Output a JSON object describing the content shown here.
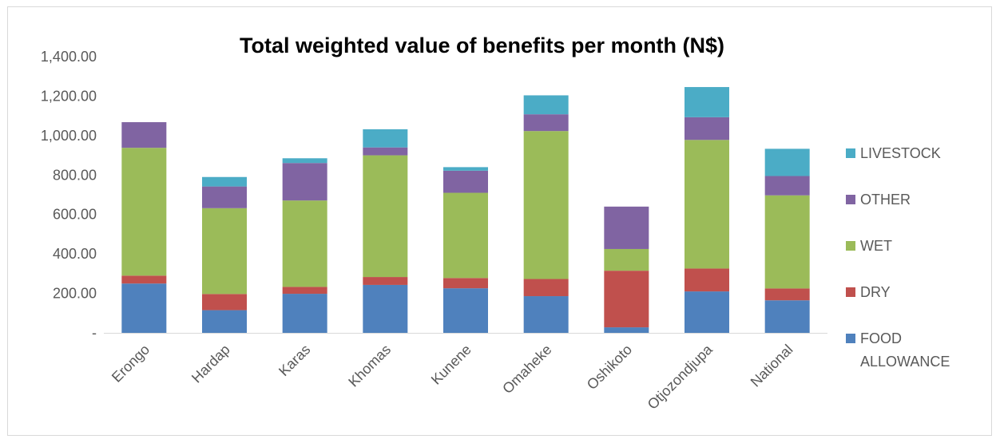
{
  "chart_data": {
    "type": "bar",
    "stacked": true,
    "title": "Total weighted value of benefits per month (N$)",
    "xlabel": "",
    "ylabel": "",
    "categories": [
      "Erongo",
      "Hardap",
      "Karas",
      "Khomas",
      "Kunene",
      "Omaheke",
      "Oshikoto",
      "Otjozondjupa",
      "National"
    ],
    "ylim": [
      0,
      1400
    ],
    "yticks": [
      0,
      200,
      400,
      600,
      800,
      1000,
      1200,
      1400
    ],
    "ytick_labels": [
      "-",
      "200.00",
      "400.00",
      "600.00",
      "800.00",
      "1,000.00",
      "1,200.00",
      "1,400.00"
    ],
    "grid": false,
    "legend_position": "right",
    "series": [
      {
        "name": "FOOD ALLOWANCE",
        "color": "#4f81bd",
        "values": [
          250,
          115,
          198,
          243,
          226,
          186,
          28,
          210,
          165
        ]
      },
      {
        "name": "DRY",
        "color": "#c0504d",
        "values": [
          40,
          82,
          35,
          40,
          52,
          87,
          287,
          116,
          60
        ]
      },
      {
        "name": "WET",
        "color": "#9bbb59",
        "values": [
          648,
          435,
          438,
          617,
          432,
          750,
          110,
          652,
          472
        ]
      },
      {
        "name": "OTHER",
        "color": "#8064a2",
        "values": [
          130,
          110,
          190,
          40,
          112,
          85,
          215,
          115,
          98
        ]
      },
      {
        "name": "LIVESTOCK",
        "color": "#4bacc6",
        "values": [
          0,
          48,
          24,
          92,
          18,
          96,
          0,
          153,
          138
        ]
      }
    ],
    "legend_order": [
      "LIVESTOCK",
      "OTHER",
      "WET",
      "DRY",
      "FOOD ALLOWANCE"
    ],
    "colors": {
      "axis": "#d9d9d9",
      "text": "#595959",
      "title": "#000000"
    }
  }
}
